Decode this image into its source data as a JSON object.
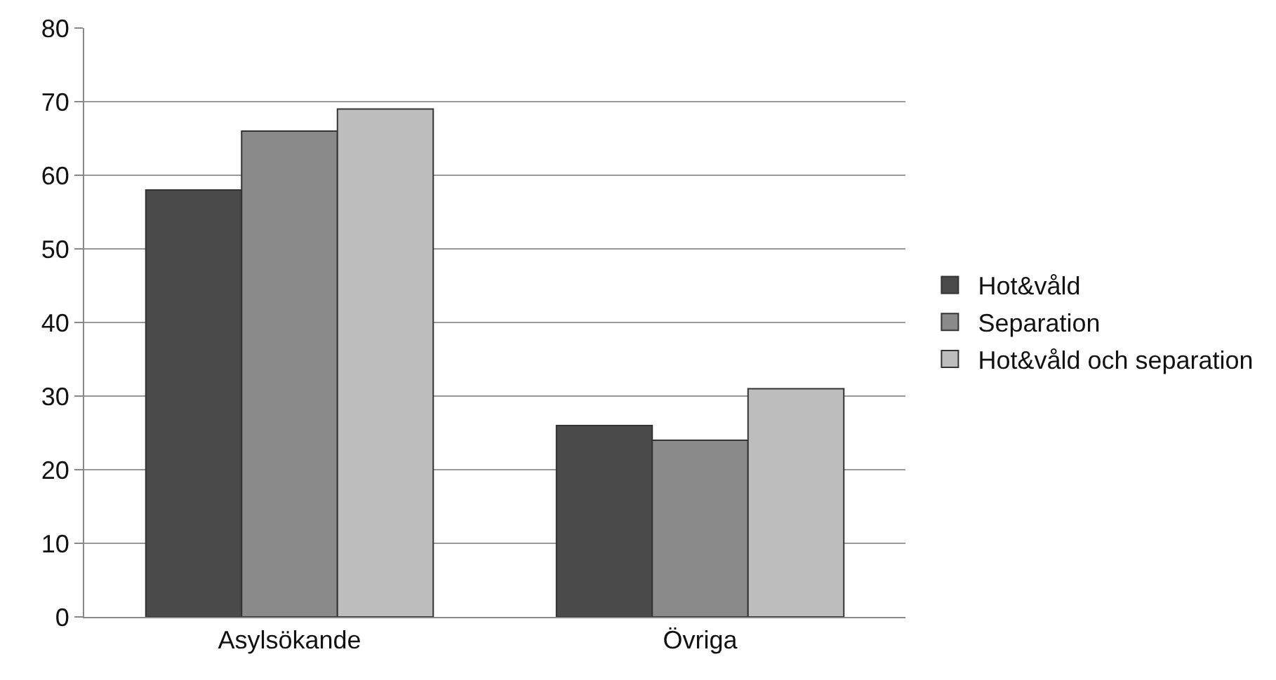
{
  "chart_data": {
    "type": "bar",
    "categories": [
      "Asylsökande",
      "Övriga"
    ],
    "series": [
      {
        "name": "Hot&våld",
        "color": "#4a4a4a",
        "values": [
          58,
          26
        ]
      },
      {
        "name": "Separation",
        "color": "#8a8a8a",
        "values": [
          66,
          24
        ]
      },
      {
        "name": "Hot&våld och separation",
        "color": "#bdbdbd",
        "values": [
          69,
          31
        ]
      }
    ],
    "ylim": [
      0,
      80
    ],
    "yticks": [
      0,
      10,
      20,
      30,
      40,
      50,
      60,
      70,
      80
    ],
    "grid": "y",
    "legend": "right"
  }
}
